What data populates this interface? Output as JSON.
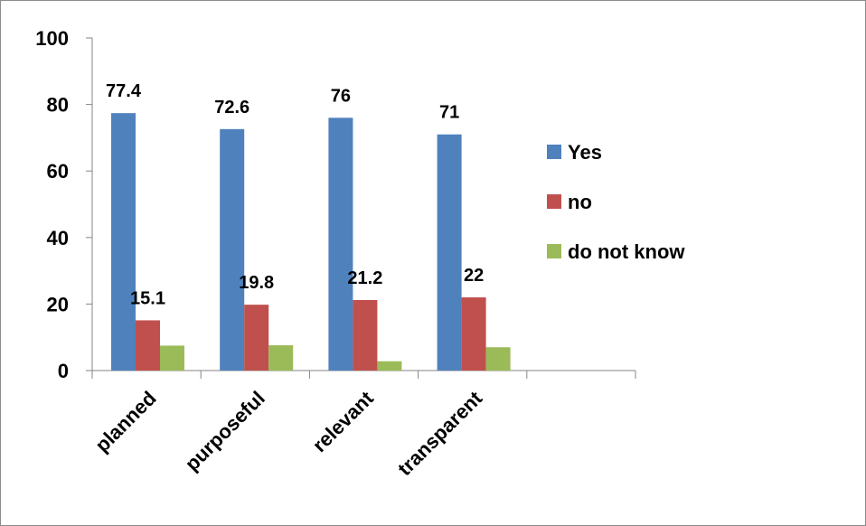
{
  "colors": {
    "series": [
      "#4F81BD",
      "#C0504D",
      "#9BBB59"
    ],
    "axis": "#868686",
    "frame": "#8c8c8c"
  },
  "chart_data": {
    "type": "bar",
    "categories": [
      "planned",
      "purposeful",
      "relevant",
      "transparent",
      ""
    ],
    "series": [
      {
        "name": "Yes",
        "values": [
          77.4,
          72.6,
          76,
          71,
          null
        ],
        "labels": [
          "77.4",
          "72.6",
          "76",
          "71",
          ""
        ]
      },
      {
        "name": "no",
        "values": [
          15.1,
          19.8,
          21.2,
          22,
          null
        ],
        "labels": [
          "15.1",
          "19.8",
          "21.2",
          "22",
          ""
        ]
      },
      {
        "name": "do not know",
        "values": [
          7.5,
          7.6,
          2.8,
          7,
          null
        ],
        "labels": [
          "",
          "",
          "",
          "",
          ""
        ]
      }
    ],
    "yticks": [
      "0",
      "20",
      "40",
      "60",
      "80",
      "100"
    ],
    "ylim": [
      0,
      100
    ],
    "grid": false,
    "legend": "right",
    "xlabel_rotation": "-45deg"
  }
}
